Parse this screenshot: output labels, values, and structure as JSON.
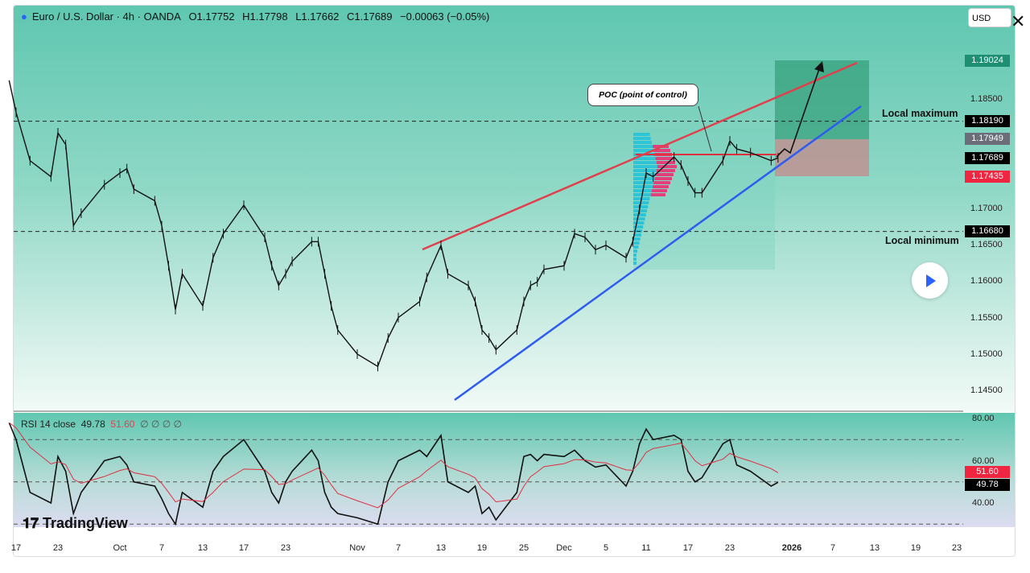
{
  "header": {
    "symbol_title": "Euro / U.S. Dollar · 4h · OANDA",
    "open": "O1.17752",
    "high": "H1.17798",
    "low": "L1.17662",
    "close": "C1.17689",
    "change": "−0.00063 (−0.05%)"
  },
  "currency_selector": "USD",
  "close_icon": "close-icon",
  "logo": "TradingView",
  "annotations": {
    "local_maximum": "Local maximum",
    "local_minimum": "Local minimum",
    "poc": "POC (point of control)"
  },
  "price_badges": [
    {
      "value": "1.19024",
      "color": "#1f8f73"
    },
    {
      "value": "1.18190",
      "color": "#000000"
    },
    {
      "value": "1.17949",
      "color": "#6b6e78"
    },
    {
      "value": "1.17689",
      "color": "#000000"
    },
    {
      "value": "1.17435",
      "color": "#f0253f"
    },
    {
      "value": "1.16680",
      "color": "#000000"
    }
  ],
  "rsi": {
    "label": "RSI 14 close",
    "value": "49.78",
    "signal": "51.60",
    "placeholders": "∅ ∅ ∅ ∅",
    "axis": [
      "80.00",
      "60.00",
      "40.00"
    ],
    "badge_rsi": "49.78",
    "badge_signal": "51.60",
    "levels": [
      70,
      50,
      30
    ]
  },
  "chart_data": {
    "type": "line",
    "title": "Euro / U.S. Dollar · 4h · OANDA",
    "ylim": [
      1.143,
      1.196
    ],
    "y_ticks": [
      "1.18500",
      "1.17000",
      "1.16500",
      "1.16000",
      "1.15500",
      "1.15000",
      "1.14500"
    ],
    "y_tick_values": [
      1.185,
      1.17,
      1.165,
      1.16,
      1.155,
      1.15,
      1.145
    ],
    "x_ticks": [
      {
        "label": "17",
        "date": "2025-09-17"
      },
      {
        "label": "23",
        "date": "2025-09-23"
      },
      {
        "label": "Oct",
        "date": "2025-10-01"
      },
      {
        "label": "7",
        "date": "2025-10-07"
      },
      {
        "label": "13",
        "date": "2025-10-13"
      },
      {
        "label": "17",
        "date": "2025-10-17"
      },
      {
        "label": "23",
        "date": "2025-10-23"
      },
      {
        "label": "Nov",
        "date": "2025-11-03"
      },
      {
        "label": "7",
        "date": "2025-11-07"
      },
      {
        "label": "13",
        "date": "2025-11-13"
      },
      {
        "label": "19",
        "date": "2025-11-19"
      },
      {
        "label": "25",
        "date": "2025-11-25"
      },
      {
        "label": "Dec",
        "date": "2025-12-01"
      },
      {
        "label": "5",
        "date": "2025-12-05"
      },
      {
        "label": "11",
        "date": "2025-12-11"
      },
      {
        "label": "17",
        "date": "2025-12-17"
      },
      {
        "label": "23",
        "date": "2025-12-23"
      },
      {
        "label": "2026",
        "date": "2026-01-01"
      },
      {
        "label": "7",
        "date": "2026-01-07"
      },
      {
        "label": "13",
        "date": "2026-01-13"
      },
      {
        "label": "19",
        "date": "2026-01-19"
      },
      {
        "label": "23",
        "date": "2026-01-23"
      }
    ],
    "levels": {
      "local_maximum": 1.1819,
      "local_minimum": 1.1668,
      "poc": 1.17689,
      "target": 1.19024,
      "entry": 1.17949,
      "stop": 1.17435
    },
    "series": [
      {
        "values": [
          [
            "2025-09-16",
            1.1875
          ],
          [
            "2025-09-17",
            1.1831
          ],
          [
            "2025-09-19",
            1.1765
          ],
          [
            "2025-09-22",
            1.1743
          ],
          [
            "2025-09-23",
            1.1803
          ],
          [
            "2025-09-24",
            1.1787
          ],
          [
            "2025-09-25",
            1.1676
          ],
          [
            "2025-09-26",
            1.1693
          ],
          [
            "2025-09-29",
            1.1732
          ],
          [
            "2025-10-01",
            1.1748
          ],
          [
            "2025-10-02",
            1.1754
          ],
          [
            "2025-10-03",
            1.1726
          ],
          [
            "2025-10-06",
            1.171
          ],
          [
            "2025-10-07",
            1.1676
          ],
          [
            "2025-10-08",
            1.1621
          ],
          [
            "2025-10-09",
            1.1561
          ],
          [
            "2025-10-10",
            1.161
          ],
          [
            "2025-10-13",
            1.1566
          ],
          [
            "2025-10-14",
            1.1632
          ],
          [
            "2025-10-15",
            1.1665
          ],
          [
            "2025-10-17",
            1.1704
          ],
          [
            "2025-10-20",
            1.166
          ],
          [
            "2025-10-21",
            1.1621
          ],
          [
            "2025-10-22",
            1.1594
          ],
          [
            "2025-10-23",
            1.161
          ],
          [
            "2025-10-24",
            1.1627
          ],
          [
            "2025-10-27",
            1.1654
          ],
          [
            "2025-10-28",
            1.1654
          ],
          [
            "2025-10-29",
            1.161
          ],
          [
            "2025-10-30",
            1.1566
          ],
          [
            "2025-10-31",
            1.1533
          ],
          [
            "2025-11-03",
            1.15
          ],
          [
            "2025-11-05",
            1.1483
          ],
          [
            "2025-11-06",
            1.1522
          ],
          [
            "2025-11-07",
            1.155
          ],
          [
            "2025-11-10",
            1.1572
          ],
          [
            "2025-11-11",
            1.1605
          ],
          [
            "2025-11-13",
            1.1649
          ],
          [
            "2025-11-14",
            1.161
          ],
          [
            "2025-11-17",
            1.1594
          ],
          [
            "2025-11-18",
            1.1572
          ],
          [
            "2025-11-19",
            1.1533
          ],
          [
            "2025-11-20",
            1.1522
          ],
          [
            "2025-11-21",
            1.1506
          ],
          [
            "2025-11-24",
            1.1533
          ],
          [
            "2025-11-25",
            1.1572
          ],
          [
            "2025-11-26",
            1.1594
          ],
          [
            "2025-11-27",
            1.1599
          ],
          [
            "2025-11-28",
            1.1616
          ],
          [
            "2025-12-01",
            1.1621
          ],
          [
            "2025-12-02",
            1.1665
          ],
          [
            "2025-12-03",
            1.166
          ],
          [
            "2025-12-04",
            1.1643
          ],
          [
            "2025-12-05",
            1.1649
          ],
          [
            "2025-12-08",
            1.1632
          ],
          [
            "2025-12-09",
            1.1654
          ],
          [
            "2025-12-10",
            1.1698
          ],
          [
            "2025-12-11",
            1.1748
          ],
          [
            "2025-12-12",
            1.1743
          ],
          [
            "2025-12-15",
            1.177
          ],
          [
            "2025-12-16",
            1.1759
          ],
          [
            "2025-12-17",
            1.1737
          ],
          [
            "2025-12-18",
            1.1721
          ],
          [
            "2025-12-19",
            1.1721
          ],
          [
            "2025-12-22",
            1.1765
          ],
          [
            "2025-12-23",
            1.1792
          ],
          [
            "2025-12-24",
            1.1781
          ],
          [
            "2025-12-26",
            1.1776
          ],
          [
            "2025-12-29",
            1.1765
          ],
          [
            "2025-12-30",
            1.17689
          ]
        ]
      }
    ],
    "rsi_values": [
      78,
      70,
      45,
      40,
      62,
      55,
      35,
      45,
      60,
      62,
      58,
      50,
      48,
      42,
      35,
      30,
      45,
      38,
      55,
      62,
      70,
      55,
      45,
      40,
      50,
      55,
      65,
      60,
      45,
      38,
      35,
      33,
      30,
      50,
      60,
      65,
      62,
      72,
      50,
      45,
      48,
      35,
      38,
      32,
      45,
      62,
      63,
      60,
      63,
      62,
      65,
      60,
      57,
      58,
      48,
      55,
      68,
      75,
      70,
      72,
      70,
      55,
      50,
      52,
      68,
      70,
      58,
      55,
      48,
      49.78
    ],
    "rsi_ylim": [
      25,
      85
    ]
  }
}
